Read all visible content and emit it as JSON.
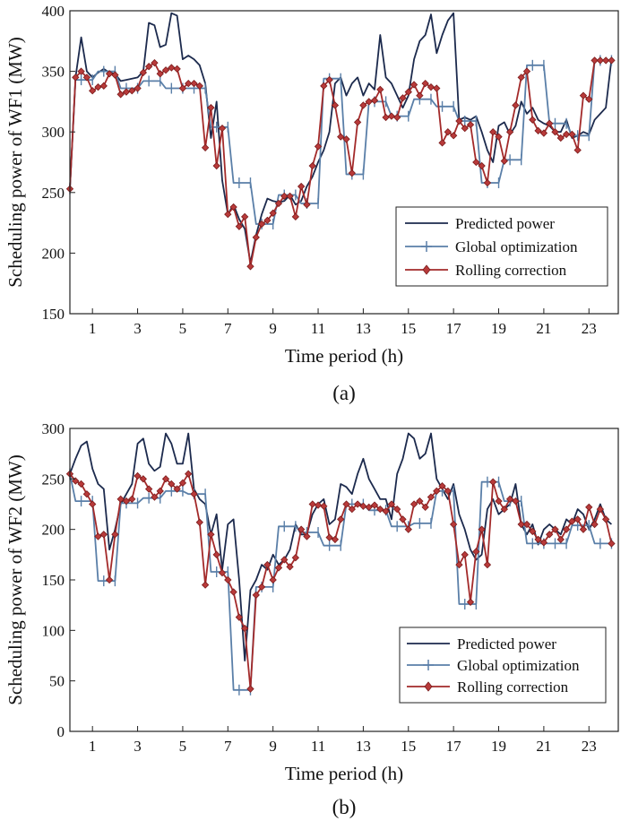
{
  "chart_data": [
    {
      "type": "line",
      "panel_label": "(a)",
      "xlabel": "Time period (h)",
      "ylabel": "Scheduling power of WF1 (MW)",
      "xlim": [
        0,
        24.3
      ],
      "ylim": [
        150,
        400
      ],
      "xticks": [
        1,
        3,
        5,
        7,
        9,
        11,
        13,
        15,
        17,
        19,
        21,
        23
      ],
      "yticks": [
        150,
        200,
        250,
        300,
        350,
        400
      ],
      "legend_position": "bottom-right",
      "colors": {
        "predicted": "#1c2a4d",
        "global": "#5a7fa8",
        "rolling": "#a32a2a"
      },
      "x": [
        0.0,
        0.25,
        0.5,
        0.75,
        1.0,
        1.25,
        1.5,
        1.75,
        2.0,
        2.25,
        2.5,
        2.75,
        3.0,
        3.25,
        3.5,
        3.75,
        4.0,
        4.25,
        4.5,
        4.75,
        5.0,
        5.25,
        5.5,
        5.75,
        6.0,
        6.25,
        6.5,
        6.75,
        7.0,
        7.25,
        7.5,
        7.75,
        8.0,
        8.25,
        8.5,
        8.75,
        9.0,
        9.25,
        9.5,
        9.75,
        10.0,
        10.25,
        10.5,
        10.75,
        11.0,
        11.25,
        11.5,
        11.75,
        12.0,
        12.25,
        12.5,
        12.75,
        13.0,
        13.25,
        13.5,
        13.75,
        14.0,
        14.25,
        14.5,
        14.75,
        15.0,
        15.25,
        15.5,
        15.75,
        16.0,
        16.25,
        16.5,
        16.75,
        17.0,
        17.25,
        17.5,
        17.75,
        18.0,
        18.25,
        18.5,
        18.75,
        19.0,
        19.25,
        19.5,
        19.75,
        20.0,
        20.25,
        20.5,
        20.75,
        21.0,
        21.25,
        21.5,
        21.75,
        22.0,
        22.25,
        22.5,
        22.75,
        23.0,
        23.25,
        23.5,
        23.75,
        24.0
      ],
      "series": [
        {
          "name": "Predicted power",
          "key": "predicted",
          "marker": "none",
          "values": [
            253,
            345,
            378,
            350,
            345,
            349,
            352,
            349,
            348,
            342,
            343,
            344,
            345,
            350,
            390,
            388,
            370,
            372,
            398,
            396,
            360,
            363,
            360,
            355,
            340,
            295,
            325,
            260,
            232,
            240,
            228,
            220,
            192,
            215,
            232,
            245,
            243,
            242,
            243,
            248,
            240,
            243,
            255,
            263,
            275,
            285,
            300,
            340,
            345,
            330,
            340,
            345,
            330,
            340,
            335,
            380,
            345,
            340,
            330,
            320,
            330,
            360,
            375,
            380,
            397,
            365,
            380,
            392,
            398,
            310,
            312,
            310,
            313,
            300,
            285,
            275,
            305,
            308,
            298,
            305,
            325,
            315,
            320,
            310,
            307,
            305,
            300,
            300,
            310,
            295,
            297,
            300,
            298,
            310,
            315,
            320,
            360
          ]
        },
        {
          "name": "Global optimization",
          "key": "global",
          "marker": "plus",
          "values": [
            253,
            343,
            343,
            343,
            343,
            350,
            350,
            350,
            350,
            336,
            336,
            336,
            336,
            342,
            342,
            342,
            342,
            336,
            336,
            336,
            336,
            336,
            336,
            336,
            336,
            304,
            304,
            304,
            304,
            258,
            258,
            258,
            258,
            224,
            224,
            224,
            224,
            248,
            248,
            248,
            248,
            241,
            241,
            241,
            241,
            344,
            344,
            344,
            344,
            265,
            265,
            265,
            265,
            325,
            325,
            325,
            325,
            313,
            313,
            313,
            313,
            327,
            327,
            327,
            327,
            321,
            321,
            321,
            321,
            309,
            309,
            309,
            309,
            258,
            258,
            258,
            258,
            277,
            277,
            277,
            277,
            355,
            355,
            355,
            355,
            307,
            307,
            307,
            307,
            297,
            297,
            297,
            297,
            359,
            359,
            359,
            359
          ]
        },
        {
          "name": "Rolling correction",
          "key": "rolling",
          "marker": "diamond",
          "values": [
            253,
            345,
            350,
            345,
            334,
            337,
            338,
            348,
            347,
            331,
            333,
            334,
            336,
            349,
            354,
            357,
            348,
            351,
            353,
            352,
            336,
            340,
            340,
            338,
            287,
            320,
            272,
            303,
            232,
            238,
            222,
            230,
            189,
            213,
            224,
            227,
            233,
            241,
            247,
            247,
            230,
            255,
            240,
            272,
            288,
            338,
            343,
            322,
            296,
            294,
            266,
            308,
            322,
            325,
            326,
            335,
            312,
            313,
            312,
            328,
            333,
            339,
            330,
            340,
            337,
            336,
            291,
            300,
            297,
            309,
            303,
            306,
            275,
            272,
            258,
            300,
            296,
            276,
            300,
            322,
            345,
            350,
            310,
            301,
            299,
            307,
            300,
            295,
            298,
            298,
            285,
            330,
            327,
            359,
            359,
            359,
            359
          ]
        }
      ]
    },
    {
      "type": "line",
      "panel_label": "(b)",
      "xlabel": "Time period (h)",
      "ylabel": "Scheduling power of WF2 (MW)",
      "xlim": [
        0,
        24.3
      ],
      "ylim": [
        0,
        300
      ],
      "xticks": [
        1,
        3,
        5,
        7,
        9,
        11,
        13,
        15,
        17,
        19,
        21,
        23
      ],
      "yticks": [
        0,
        50,
        100,
        150,
        200,
        250,
        300
      ],
      "legend_position": "bottom-right",
      "colors": {
        "predicted": "#1c2a4d",
        "global": "#5a7fa8",
        "rolling": "#a32a2a"
      },
      "x": [
        0.0,
        0.25,
        0.5,
        0.75,
        1.0,
        1.25,
        1.5,
        1.75,
        2.0,
        2.25,
        2.5,
        2.75,
        3.0,
        3.25,
        3.5,
        3.75,
        4.0,
        4.25,
        4.5,
        4.75,
        5.0,
        5.25,
        5.5,
        5.75,
        6.0,
        6.25,
        6.5,
        6.75,
        7.0,
        7.25,
        7.5,
        7.75,
        8.0,
        8.25,
        8.5,
        8.75,
        9.0,
        9.25,
        9.5,
        9.75,
        10.0,
        10.25,
        10.5,
        10.75,
        11.0,
        11.25,
        11.5,
        11.75,
        12.0,
        12.25,
        12.5,
        12.75,
        13.0,
        13.25,
        13.5,
        13.75,
        14.0,
        14.25,
        14.5,
        14.75,
        15.0,
        15.25,
        15.5,
        15.75,
        16.0,
        16.25,
        16.5,
        16.75,
        17.0,
        17.25,
        17.5,
        17.75,
        18.0,
        18.25,
        18.5,
        18.75,
        19.0,
        19.25,
        19.5,
        19.75,
        20.0,
        20.25,
        20.5,
        20.75,
        21.0,
        21.25,
        21.5,
        21.75,
        22.0,
        22.25,
        22.5,
        22.75,
        23.0,
        23.25,
        23.5,
        23.75,
        24.0
      ],
      "series": [
        {
          "name": "Predicted power",
          "key": "predicted",
          "marker": "none",
          "values": [
            255,
            270,
            283,
            287,
            260,
            245,
            240,
            180,
            200,
            225,
            235,
            245,
            285,
            290,
            265,
            258,
            262,
            295,
            285,
            265,
            265,
            295,
            240,
            230,
            225,
            195,
            215,
            160,
            205,
            210,
            150,
            70,
            140,
            150,
            165,
            160,
            175,
            165,
            170,
            180,
            205,
            195,
            195,
            215,
            225,
            230,
            205,
            210,
            245,
            242,
            235,
            255,
            270,
            250,
            240,
            230,
            230,
            210,
            255,
            270,
            295,
            290,
            270,
            275,
            295,
            250,
            240,
            230,
            245,
            215,
            200,
            180,
            170,
            175,
            220,
            230,
            215,
            220,
            225,
            245,
            205,
            195,
            205,
            185,
            200,
            205,
            200,
            195,
            210,
            205,
            220,
            215,
            200,
            210,
            225,
            210,
            205
          ]
        },
        {
          "name": "Global optimization",
          "key": "global",
          "marker": "plus",
          "values": [
            255,
            228,
            228,
            228,
            228,
            149,
            149,
            149,
            149,
            226,
            226,
            226,
            226,
            231,
            231,
            231,
            231,
            238,
            238,
            238,
            238,
            235,
            235,
            235,
            235,
            158,
            158,
            158,
            158,
            41,
            41,
            41,
            41,
            143,
            143,
            143,
            143,
            203,
            203,
            203,
            203,
            197,
            197,
            197,
            197,
            184,
            184,
            184,
            184,
            225,
            225,
            225,
            225,
            219,
            219,
            219,
            219,
            203,
            203,
            203,
            203,
            206,
            206,
            206,
            206,
            238,
            238,
            238,
            238,
            126,
            126,
            126,
            126,
            247,
            247,
            247,
            247,
            228,
            228,
            228,
            228,
            186,
            186,
            186,
            186,
            186,
            186,
            186,
            186,
            204,
            204,
            204,
            204,
            186,
            186,
            186,
            186
          ]
        },
        {
          "name": "Rolling correction",
          "key": "rolling",
          "marker": "diamond",
          "values": [
            255,
            248,
            245,
            235,
            225,
            193,
            195,
            150,
            195,
            230,
            228,
            230,
            253,
            250,
            240,
            232,
            238,
            250,
            245,
            240,
            246,
            255,
            235,
            207,
            145,
            195,
            175,
            157,
            150,
            138,
            113,
            102,
            42,
            135,
            143,
            165,
            150,
            162,
            170,
            163,
            172,
            200,
            193,
            225,
            224,
            223,
            192,
            190,
            210,
            225,
            220,
            225,
            223,
            222,
            224,
            220,
            218,
            225,
            220,
            210,
            200,
            225,
            228,
            222,
            232,
            238,
            243,
            238,
            205,
            165,
            175,
            128,
            178,
            200,
            165,
            247,
            228,
            220,
            230,
            228,
            205,
            205,
            198,
            190,
            187,
            195,
            200,
            190,
            200,
            208,
            210,
            200,
            222,
            205,
            220,
            210,
            186
          ]
        }
      ]
    }
  ],
  "legend": {
    "predicted": "Predicted power",
    "global": "Global optimization",
    "rolling": "Rolling correction"
  }
}
